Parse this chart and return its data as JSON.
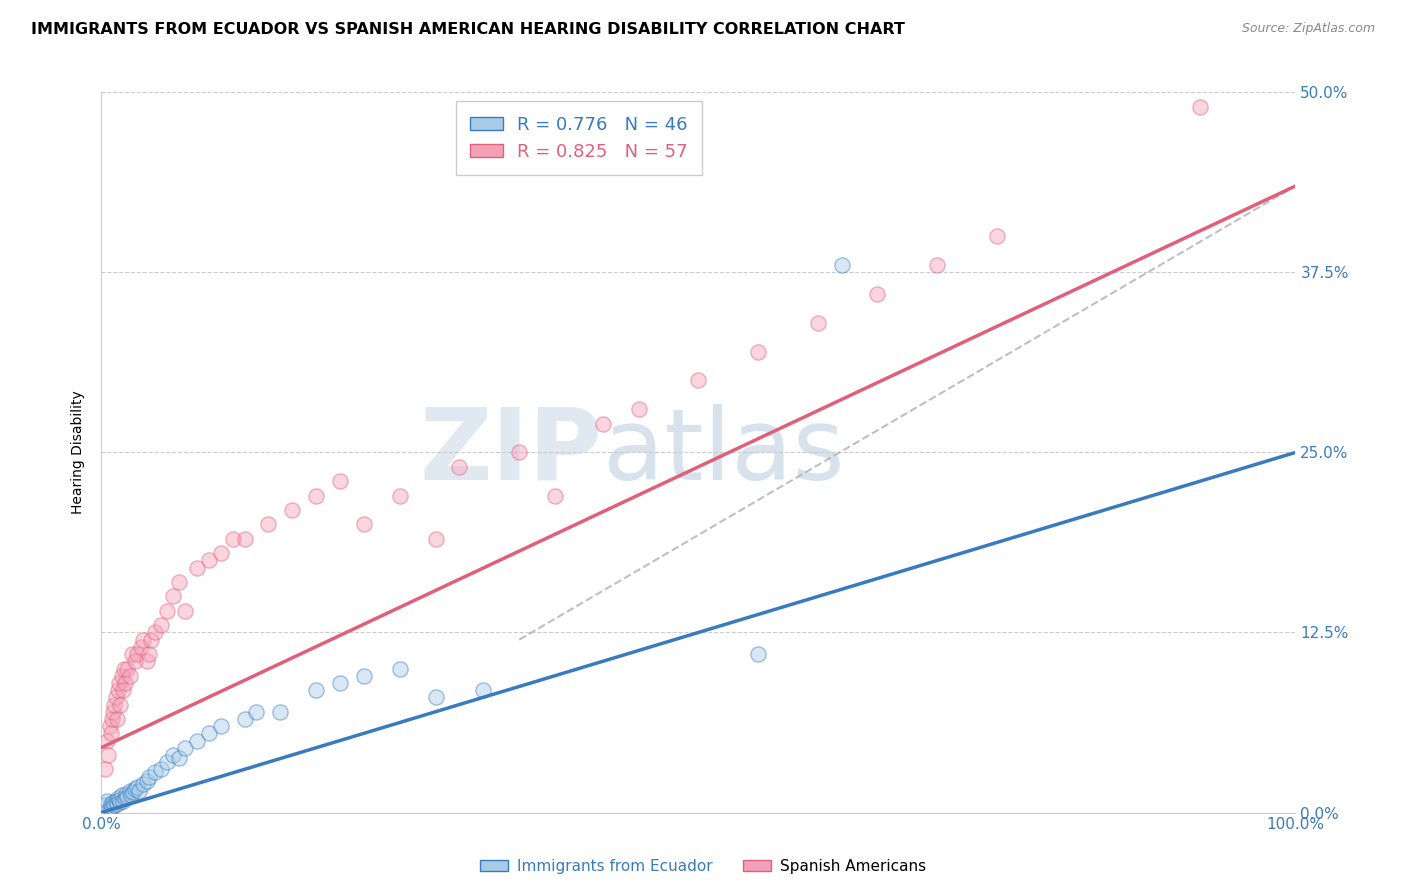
{
  "title": "IMMIGRANTS FROM ECUADOR VS SPANISH AMERICAN HEARING DISABILITY CORRELATION CHART",
  "source": "Source: ZipAtlas.com",
  "xlabel": "",
  "ylabel": "Hearing Disability",
  "xlim": [
    0.0,
    1.0
  ],
  "ylim": [
    0.0,
    0.5
  ],
  "xtick_labels": [
    "0.0%",
    "100.0%"
  ],
  "ytick_labels": [
    "0.0%",
    "12.5%",
    "25.0%",
    "37.5%",
    "50.0%"
  ],
  "ytick_values": [
    0.0,
    0.125,
    0.25,
    0.375,
    0.5
  ],
  "grid_color": "#cccccc",
  "background_color": "#ffffff",
  "watermark_zip": "ZIP",
  "watermark_atlas": "atlas",
  "legend_r1": "R = 0.776",
  "legend_n1": "N = 46",
  "legend_r2": "R = 0.825",
  "legend_n2": "N = 57",
  "blue_color": "#a8cce8",
  "pink_color": "#f4a0b8",
  "blue_line_color": "#3a7abf",
  "pink_line_color": "#e0607a",
  "dashed_line_color": "#b0b0b0",
  "ecuador_points_x": [
    0.003,
    0.005,
    0.007,
    0.008,
    0.009,
    0.01,
    0.011,
    0.012,
    0.013,
    0.014,
    0.015,
    0.016,
    0.017,
    0.018,
    0.02,
    0.021,
    0.022,
    0.024,
    0.025,
    0.027,
    0.028,
    0.03,
    0.032,
    0.035,
    0.038,
    0.04,
    0.045,
    0.05,
    0.055,
    0.06,
    0.065,
    0.07,
    0.08,
    0.09,
    0.1,
    0.12,
    0.13,
    0.15,
    0.18,
    0.2,
    0.22,
    0.25,
    0.28,
    0.32,
    0.55,
    0.62
  ],
  "ecuador_points_y": [
    0.005,
    0.008,
    0.003,
    0.006,
    0.004,
    0.007,
    0.005,
    0.008,
    0.006,
    0.01,
    0.009,
    0.007,
    0.012,
    0.008,
    0.01,
    0.013,
    0.011,
    0.015,
    0.012,
    0.014,
    0.016,
    0.018,
    0.015,
    0.02,
    0.022,
    0.025,
    0.028,
    0.03,
    0.035,
    0.04,
    0.038,
    0.045,
    0.05,
    0.055,
    0.06,
    0.065,
    0.07,
    0.07,
    0.085,
    0.09,
    0.095,
    0.1,
    0.08,
    0.085,
    0.11,
    0.38
  ],
  "spanish_points_x": [
    0.003,
    0.005,
    0.006,
    0.007,
    0.008,
    0.009,
    0.01,
    0.011,
    0.012,
    0.013,
    0.014,
    0.015,
    0.016,
    0.017,
    0.018,
    0.019,
    0.02,
    0.022,
    0.024,
    0.026,
    0.028,
    0.03,
    0.033,
    0.035,
    0.038,
    0.04,
    0.042,
    0.045,
    0.05,
    0.055,
    0.06,
    0.065,
    0.07,
    0.08,
    0.09,
    0.1,
    0.11,
    0.12,
    0.14,
    0.16,
    0.18,
    0.2,
    0.22,
    0.25,
    0.28,
    0.3,
    0.35,
    0.38,
    0.42,
    0.45,
    0.5,
    0.55,
    0.6,
    0.65,
    0.7,
    0.75,
    0.92
  ],
  "spanish_points_y": [
    0.03,
    0.05,
    0.04,
    0.06,
    0.055,
    0.065,
    0.07,
    0.075,
    0.08,
    0.065,
    0.085,
    0.09,
    0.075,
    0.095,
    0.085,
    0.1,
    0.09,
    0.1,
    0.095,
    0.11,
    0.105,
    0.11,
    0.115,
    0.12,
    0.105,
    0.11,
    0.12,
    0.125,
    0.13,
    0.14,
    0.15,
    0.16,
    0.14,
    0.17,
    0.175,
    0.18,
    0.19,
    0.19,
    0.2,
    0.21,
    0.22,
    0.23,
    0.2,
    0.22,
    0.19,
    0.24,
    0.25,
    0.22,
    0.27,
    0.28,
    0.3,
    0.32,
    0.34,
    0.36,
    0.38,
    0.4,
    0.49
  ],
  "ecuador_line_x0": 0.0,
  "ecuador_line_x1": 1.0,
  "ecuador_line_y0": 0.0,
  "ecuador_line_y1": 0.25,
  "spanish_line_x0": 0.0,
  "spanish_line_x1": 1.0,
  "spanish_line_y0": 0.045,
  "spanish_line_y1": 0.435,
  "dashed_line_x0": 0.35,
  "dashed_line_x1": 1.0,
  "dashed_line_y0": 0.12,
  "dashed_line_y1": 0.435,
  "marker_size": 120,
  "marker_alpha": 0.45,
  "title_fontsize": 11.5,
  "axis_label_fontsize": 10,
  "tick_fontsize": 11,
  "legend_fontsize": 13
}
